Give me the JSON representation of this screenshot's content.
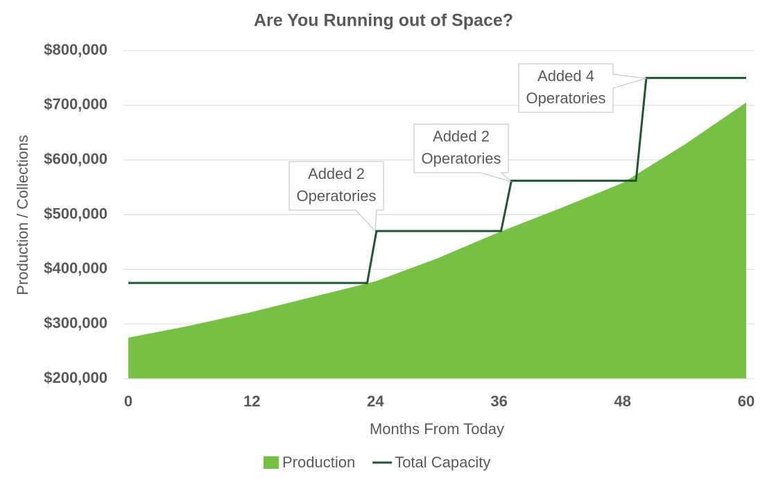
{
  "chart_data": {
    "type": "area-line",
    "title": "Are You Running out of Space?",
    "x_label": "Months From Today",
    "y_label": "Production / Collections",
    "xlim": [
      0,
      60
    ],
    "xticks": [
      0,
      12,
      24,
      36,
      48,
      60
    ],
    "ylim": [
      200000,
      800000
    ],
    "yticks": [
      {
        "value": 200000,
        "label": "$200,000"
      },
      {
        "value": 300000,
        "label": "$300,000"
      },
      {
        "value": 400000,
        "label": "$400,000"
      },
      {
        "value": 500000,
        "label": "$500,000"
      },
      {
        "value": 600000,
        "label": "$600,000"
      },
      {
        "value": 700000,
        "label": "$700,000"
      },
      {
        "value": 800000,
        "label": "$800,000"
      }
    ],
    "grid": true,
    "legend": "bottom",
    "series": [
      {
        "name": "Production",
        "kind": "area",
        "color": "#77bf45",
        "x": [
          0,
          6,
          12,
          18,
          24,
          30,
          36,
          42,
          48,
          54,
          60
        ],
        "values": [
          275000,
          297000,
          322000,
          350000,
          378000,
          420000,
          468000,
          512000,
          558000,
          628000,
          705000
        ]
      },
      {
        "name": "Total Capacity",
        "kind": "line",
        "color": "#1e5631",
        "x": [
          0,
          23.2,
          24.1,
          36.2,
          37.2,
          49.3,
          50.3,
          60
        ],
        "values": [
          375000,
          375000,
          470000,
          470000,
          562000,
          562000,
          750000,
          750000
        ]
      }
    ],
    "annotations": [
      {
        "lines": [
          "Added 2",
          "Operatories"
        ]
      },
      {
        "lines": [
          "Added 2",
          "Operatories"
        ]
      },
      {
        "lines": [
          "Added 4",
          "Operatories"
        ]
      }
    ]
  }
}
